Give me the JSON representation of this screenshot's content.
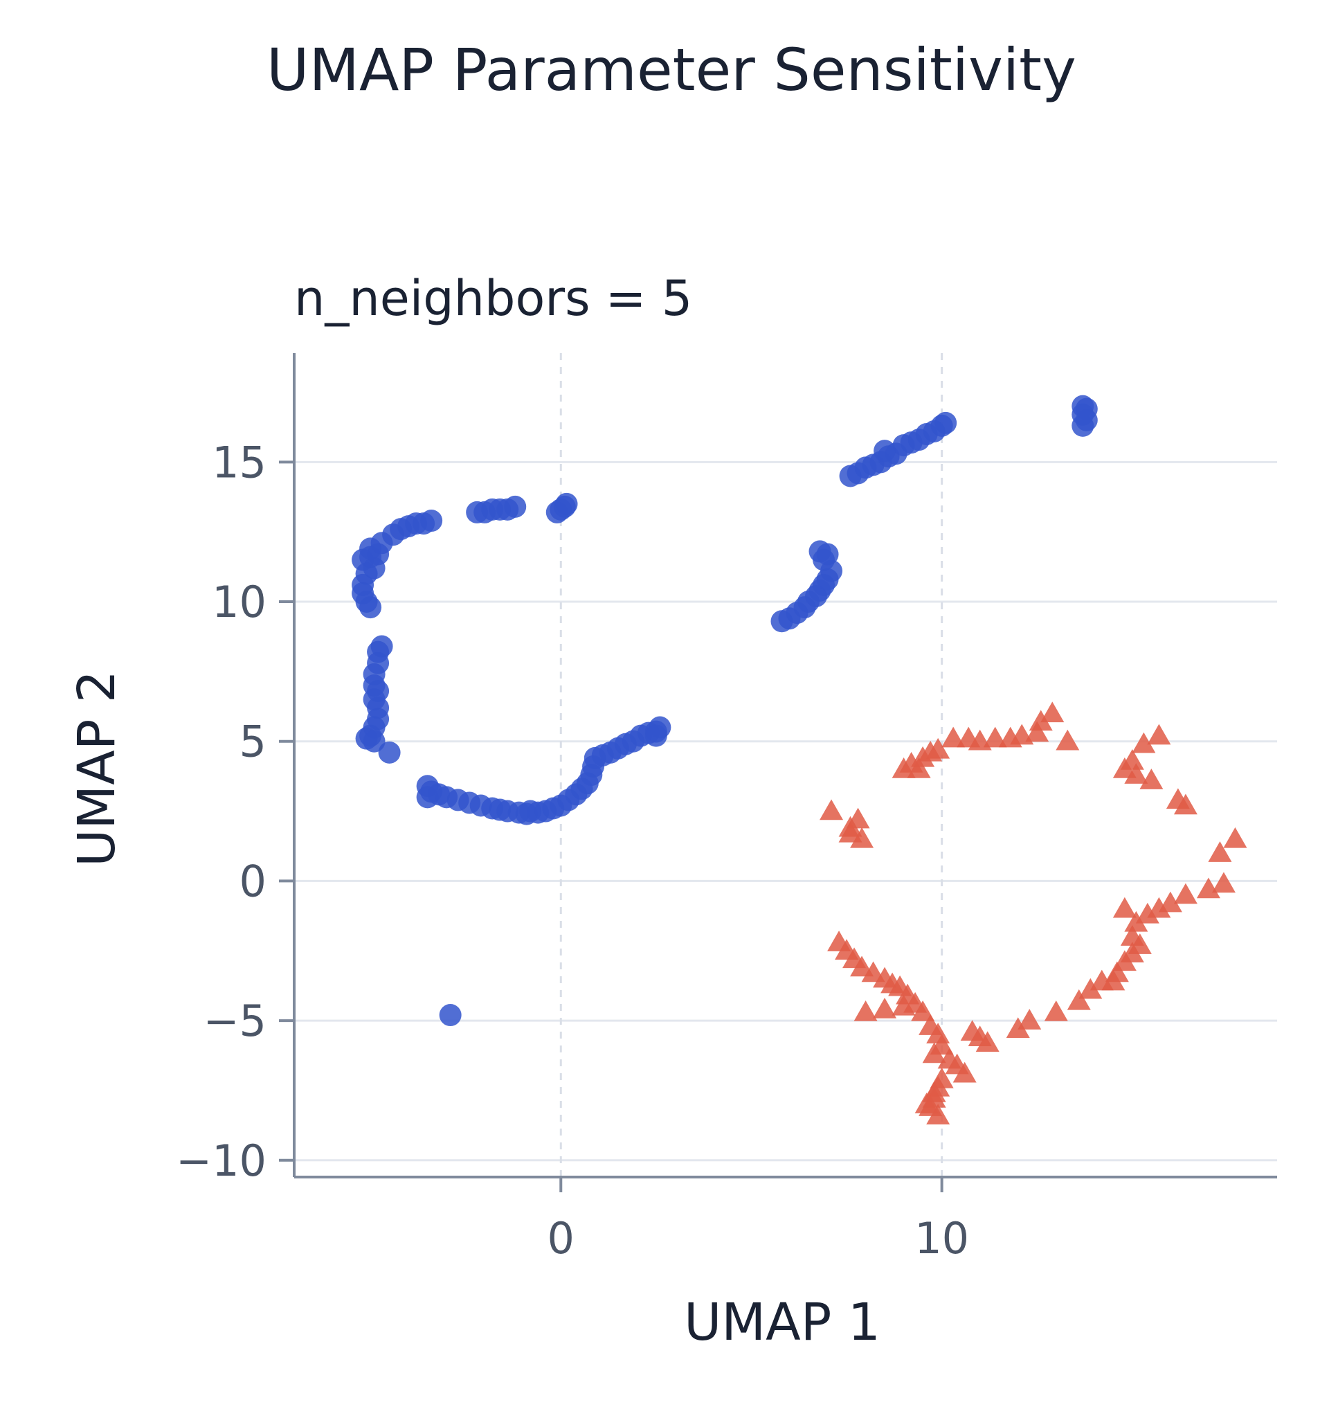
{
  "chart_data": {
    "type": "scatter",
    "title": "UMAP Parameter Sensitivity",
    "subtitle": "n_neighbors = 5",
    "xlabel": "UMAP 1",
    "ylabel": "UMAP 2",
    "xlim": [
      -7,
      18.8
    ],
    "ylim": [
      -10.6,
      18.9
    ],
    "xticks": [
      0,
      10
    ],
    "xtick_labels": [
      "0",
      "10"
    ],
    "yticks": [
      15,
      10,
      5,
      0,
      -5,
      -10
    ],
    "ytick_labels": [
      "15",
      "10",
      "5",
      "0",
      "−5",
      "−10"
    ],
    "grid": {
      "horizontal": true,
      "vertical_dashed": true
    },
    "legend": "none",
    "series": [
      {
        "marker": "circle",
        "color": "#3355cc",
        "points": [
          [
            -2.9,
            -4.8
          ],
          [
            -5.2,
            11.5
          ],
          [
            -5.0,
            11.6
          ],
          [
            -4.8,
            11.7
          ],
          [
            -4.9,
            11.2
          ],
          [
            -5.1,
            11.0
          ],
          [
            -5.2,
            10.6
          ],
          [
            -5.2,
            10.3
          ],
          [
            -5.1,
            10.0
          ],
          [
            -5.0,
            9.8
          ],
          [
            -5.0,
            11.9
          ],
          [
            -4.7,
            12.1
          ],
          [
            -4.4,
            12.4
          ],
          [
            -4.2,
            12.6
          ],
          [
            -4.0,
            12.7
          ],
          [
            -3.8,
            12.8
          ],
          [
            -3.6,
            12.8
          ],
          [
            -3.4,
            12.9
          ],
          [
            -2.2,
            13.2
          ],
          [
            -2.0,
            13.2
          ],
          [
            -1.8,
            13.3
          ],
          [
            -1.6,
            13.3
          ],
          [
            -1.4,
            13.3
          ],
          [
            -1.2,
            13.4
          ],
          [
            -0.1,
            13.2
          ],
          [
            0.0,
            13.3
          ],
          [
            0.1,
            13.4
          ],
          [
            0.15,
            13.5
          ],
          [
            -4.7,
            8.4
          ],
          [
            -4.8,
            8.2
          ],
          [
            -4.8,
            7.8
          ],
          [
            -4.9,
            7.4
          ],
          [
            -4.9,
            7.0
          ],
          [
            -4.8,
            6.8
          ],
          [
            -4.9,
            6.5
          ],
          [
            -4.8,
            6.2
          ],
          [
            -4.8,
            5.8
          ],
          [
            -4.9,
            5.5
          ],
          [
            -5.0,
            5.2
          ],
          [
            -5.1,
            5.1
          ],
          [
            -4.9,
            5.0
          ],
          [
            -4.5,
            4.6
          ],
          [
            -3.5,
            3.4
          ],
          [
            -3.4,
            3.2
          ],
          [
            -3.5,
            3.0
          ],
          [
            -3.2,
            3.1
          ],
          [
            -3.0,
            3.0
          ],
          [
            -2.7,
            2.9
          ],
          [
            -2.4,
            2.8
          ],
          [
            -2.1,
            2.7
          ],
          [
            -1.8,
            2.6
          ],
          [
            -1.6,
            2.55
          ],
          [
            -1.4,
            2.5
          ],
          [
            -1.1,
            2.45
          ],
          [
            -0.9,
            2.4
          ],
          [
            -0.8,
            2.5
          ],
          [
            -0.6,
            2.45
          ],
          [
            -0.4,
            2.5
          ],
          [
            -0.2,
            2.6
          ],
          [
            0.0,
            2.7
          ],
          [
            0.2,
            2.9
          ],
          [
            0.4,
            3.1
          ],
          [
            0.55,
            3.3
          ],
          [
            0.7,
            3.5
          ],
          [
            0.8,
            3.8
          ],
          [
            0.85,
            4.1
          ],
          [
            0.9,
            4.4
          ],
          [
            1.1,
            4.5
          ],
          [
            1.3,
            4.6
          ],
          [
            1.5,
            4.75
          ],
          [
            1.7,
            4.9
          ],
          [
            1.9,
            5.0
          ],
          [
            2.1,
            5.2
          ],
          [
            2.3,
            5.3
          ],
          [
            2.5,
            5.35
          ],
          [
            2.6,
            5.5
          ],
          [
            2.5,
            5.2
          ],
          [
            5.8,
            9.3
          ],
          [
            6.0,
            9.4
          ],
          [
            6.2,
            9.6
          ],
          [
            6.4,
            9.8
          ],
          [
            6.5,
            10.0
          ],
          [
            6.7,
            10.2
          ],
          [
            6.8,
            10.4
          ],
          [
            6.9,
            10.6
          ],
          [
            7.0,
            10.8
          ],
          [
            7.1,
            11.1
          ],
          [
            6.9,
            11.5
          ],
          [
            7.0,
            11.7
          ],
          [
            6.8,
            11.8
          ],
          [
            7.6,
            14.5
          ],
          [
            7.8,
            14.6
          ],
          [
            8.0,
            14.8
          ],
          [
            8.2,
            14.9
          ],
          [
            8.4,
            15.0
          ],
          [
            8.6,
            15.2
          ],
          [
            8.8,
            15.3
          ],
          [
            8.5,
            15.4
          ],
          [
            9.0,
            15.6
          ],
          [
            9.2,
            15.7
          ],
          [
            9.4,
            15.8
          ],
          [
            9.6,
            16.0
          ],
          [
            9.8,
            16.1
          ],
          [
            10.0,
            16.3
          ],
          [
            10.1,
            16.4
          ],
          [
            13.7,
            16.3
          ],
          [
            13.8,
            16.5
          ],
          [
            13.7,
            16.7
          ],
          [
            13.8,
            16.9
          ],
          [
            13.7,
            17.0
          ]
        ]
      },
      {
        "marker": "triangle",
        "color": "#e05a45",
        "points": [
          [
            7.1,
            2.5
          ],
          [
            7.6,
            1.7
          ],
          [
            7.9,
            1.5
          ],
          [
            7.8,
            2.2
          ],
          [
            7.6,
            1.9
          ],
          [
            9.0,
            4.0
          ],
          [
            9.2,
            4.2
          ],
          [
            9.5,
            4.4
          ],
          [
            9.7,
            4.6
          ],
          [
            9.4,
            4.0
          ],
          [
            9.9,
            4.7
          ],
          [
            10.3,
            5.1
          ],
          [
            10.7,
            5.1
          ],
          [
            11.0,
            5.0
          ],
          [
            11.4,
            5.1
          ],
          [
            11.8,
            5.1
          ],
          [
            12.1,
            5.2
          ],
          [
            12.5,
            5.3
          ],
          [
            12.6,
            5.7
          ],
          [
            12.9,
            6.0
          ],
          [
            13.3,
            5.0
          ],
          [
            14.8,
            4.0
          ],
          [
            15.0,
            4.3
          ],
          [
            15.3,
            4.9
          ],
          [
            15.7,
            5.2
          ],
          [
            15.1,
            3.8
          ],
          [
            15.5,
            3.6
          ],
          [
            16.2,
            2.9
          ],
          [
            16.4,
            2.7
          ],
          [
            17.3,
            1.0
          ],
          [
            17.7,
            1.5
          ],
          [
            17.4,
            -0.1
          ],
          [
            17.0,
            -0.3
          ],
          [
            16.4,
            -0.5
          ],
          [
            16.0,
            -0.8
          ],
          [
            15.7,
            -1.0
          ],
          [
            15.4,
            -1.2
          ],
          [
            15.1,
            -1.5
          ],
          [
            14.8,
            -1.0
          ],
          [
            15.0,
            -2.0
          ],
          [
            15.2,
            -2.3
          ],
          [
            15.0,
            -2.6
          ],
          [
            14.8,
            -2.9
          ],
          [
            14.6,
            -3.3
          ],
          [
            14.5,
            -3.6
          ],
          [
            14.2,
            -3.6
          ],
          [
            13.9,
            -3.9
          ],
          [
            13.6,
            -4.3
          ],
          [
            13.0,
            -4.7
          ],
          [
            12.3,
            -5.0
          ],
          [
            12.0,
            -5.3
          ],
          [
            7.3,
            -2.2
          ],
          [
            7.5,
            -2.5
          ],
          [
            7.7,
            -2.8
          ],
          [
            7.9,
            -3.1
          ],
          [
            8.2,
            -3.3
          ],
          [
            8.5,
            -3.5
          ],
          [
            8.7,
            -3.7
          ],
          [
            8.9,
            -3.8
          ],
          [
            9.1,
            -4.1
          ],
          [
            9.3,
            -4.4
          ],
          [
            9.5,
            -4.7
          ],
          [
            9.0,
            -4.5
          ],
          [
            8.5,
            -4.6
          ],
          [
            8.0,
            -4.7
          ],
          [
            9.7,
            -5.2
          ],
          [
            9.9,
            -5.5
          ],
          [
            10.0,
            -5.9
          ],
          [
            9.8,
            -6.2
          ],
          [
            10.2,
            -6.4
          ],
          [
            10.4,
            -6.6
          ],
          [
            10.6,
            -6.9
          ],
          [
            10.0,
            -7.1
          ],
          [
            9.9,
            -7.4
          ],
          [
            9.8,
            -7.8
          ],
          [
            9.7,
            -8.1
          ],
          [
            9.9,
            -8.4
          ],
          [
            9.6,
            -8.0
          ],
          [
            9.8,
            -7.6
          ],
          [
            10.8,
            -5.4
          ],
          [
            11.0,
            -5.6
          ],
          [
            11.2,
            -5.8
          ]
        ]
      }
    ]
  }
}
